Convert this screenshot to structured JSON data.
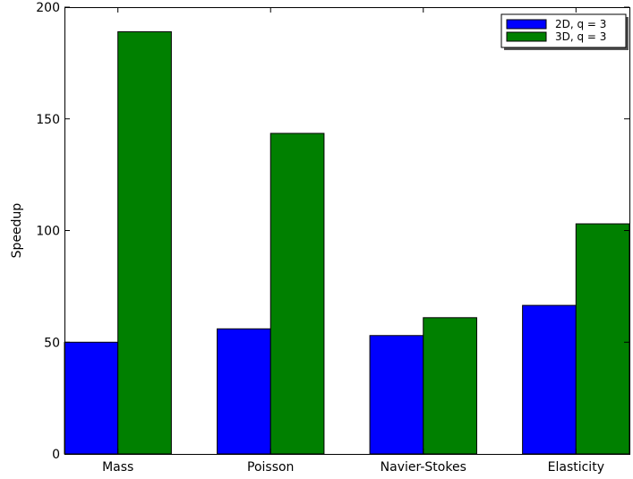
{
  "chart_data": {
    "type": "bar",
    "title": "",
    "xlabel": "",
    "ylabel": "Speedup",
    "categories": [
      "Mass",
      "Poisson",
      "Navier-Stokes",
      "Elasticity"
    ],
    "series": [
      {
        "name": "2D, q = 3",
        "color": "#0000ff",
        "values": [
          50,
          56,
          53,
          66.5
        ]
      },
      {
        "name": "3D, q = 3",
        "color": "#008000",
        "values": [
          189,
          143.5,
          61,
          103
        ]
      }
    ],
    "ylim": [
      0,
      200
    ],
    "yticks": [
      0,
      50,
      100,
      150,
      200
    ],
    "grid": false,
    "legend_position": "top-right"
  }
}
